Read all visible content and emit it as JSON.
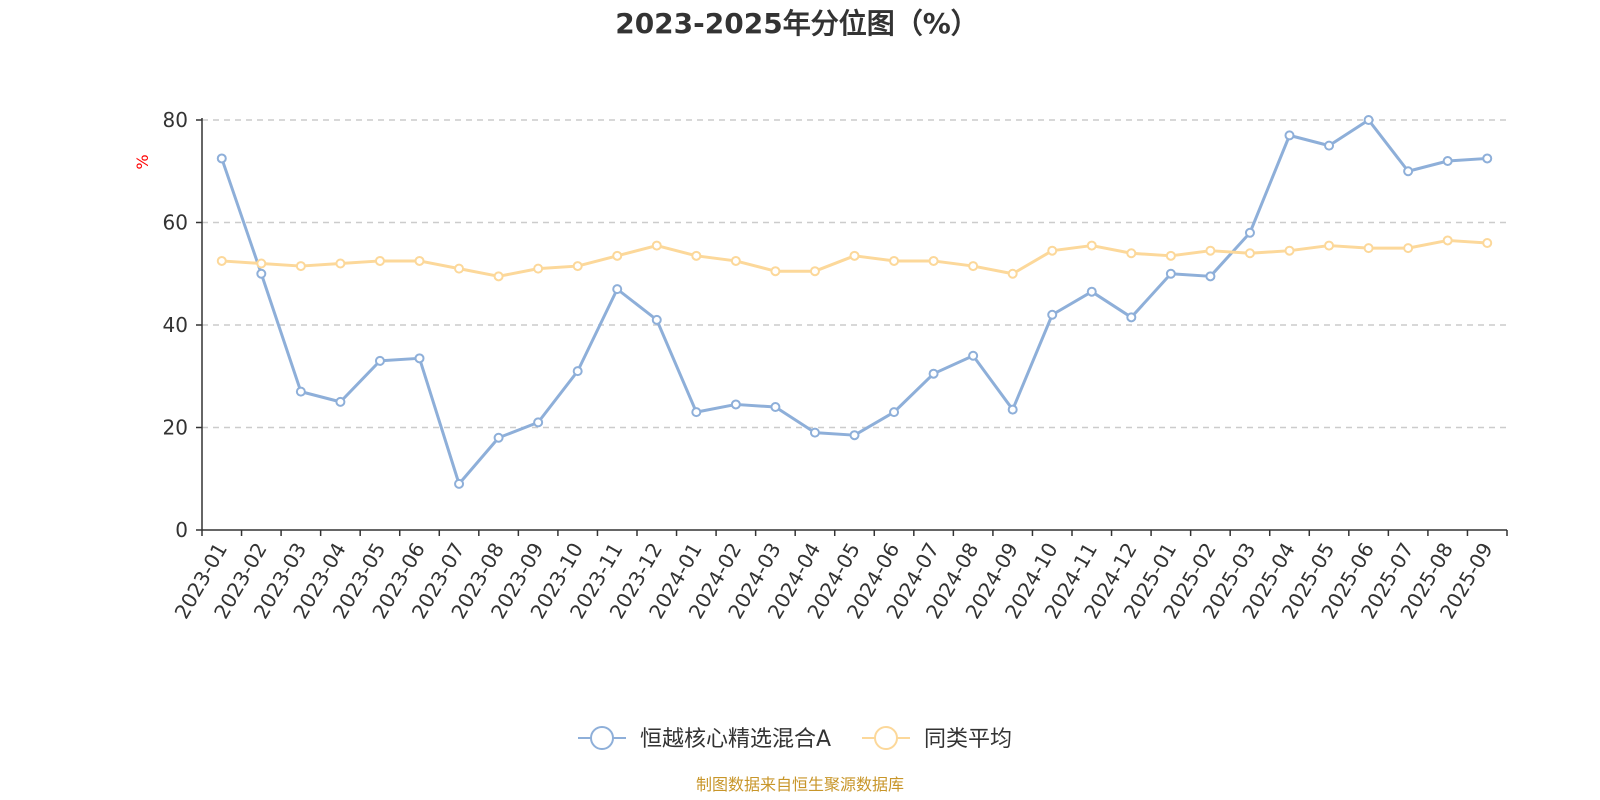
{
  "chart_data": {
    "type": "line",
    "title": "2023-2025年分位图（%）",
    "ylabel": "%",
    "ylim": [
      0,
      80
    ],
    "yticks": [
      0,
      20,
      40,
      60,
      80
    ],
    "grid": true,
    "legend_position": "bottom",
    "categories": [
      "2023-01",
      "2023-02",
      "2023-03",
      "2023-04",
      "2023-05",
      "2023-06",
      "2023-07",
      "2023-08",
      "2023-09",
      "2023-10",
      "2023-11",
      "2023-12",
      "2024-01",
      "2024-02",
      "2024-03",
      "2024-04",
      "2024-05",
      "2024-06",
      "2024-07",
      "2024-08",
      "2024-09",
      "2024-10",
      "2024-11",
      "2024-12",
      "2025-01",
      "2025-02",
      "2025-03",
      "2025-04",
      "2025-05",
      "2025-06",
      "2025-07",
      "2025-08",
      "2025-09"
    ],
    "series": [
      {
        "name": "恒越核心精选混合A",
        "color": "#8eafd9",
        "values": [
          72.5,
          50.0,
          27.0,
          25.0,
          33.0,
          33.5,
          9.0,
          18.0,
          21.0,
          31.0,
          47.0,
          41.0,
          23.0,
          24.5,
          24.0,
          19.0,
          18.5,
          23.0,
          30.5,
          34.0,
          23.5,
          42.0,
          46.5,
          41.5,
          50.0,
          49.5,
          58.0,
          77.0,
          75.0,
          80.0,
          70.0,
          72.0,
          72.5
        ]
      },
      {
        "name": "同类平均",
        "color": "#fcd89a",
        "values": [
          52.5,
          52.0,
          51.5,
          52.0,
          52.5,
          52.5,
          51.0,
          49.5,
          51.0,
          51.5,
          53.5,
          55.5,
          53.5,
          52.5,
          50.5,
          50.5,
          53.5,
          52.5,
          52.5,
          51.5,
          50.0,
          54.5,
          55.5,
          54.0,
          53.5,
          54.5,
          54.0,
          54.5,
          55.5,
          55.0,
          55.0,
          56.5,
          56.0
        ]
      }
    ]
  },
  "footer": {
    "source": "制图数据来自恒生聚源数据库",
    "source_color": "#c8962a"
  },
  "axis_label_color": "#ff0000"
}
